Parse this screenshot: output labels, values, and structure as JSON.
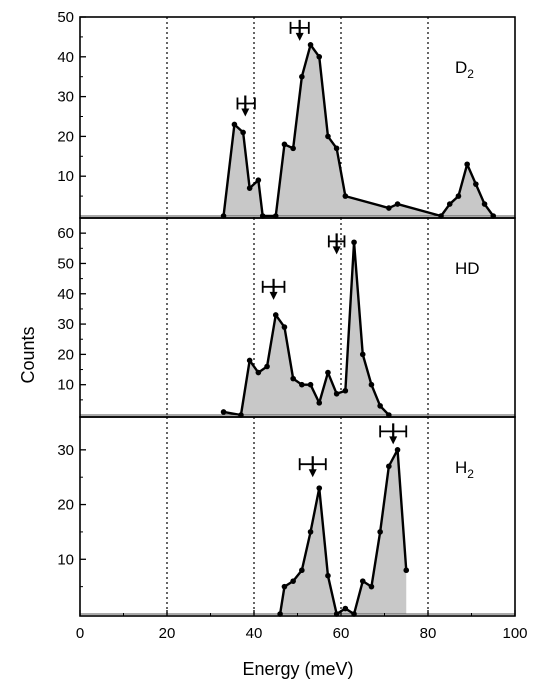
{
  "chart_data": {
    "type": "area",
    "xlabel": "Energy (meV)",
    "ylabel": "Counts",
    "xlim": [
      0,
      100
    ],
    "x_ticks": [
      0,
      20,
      40,
      60,
      80,
      100
    ],
    "x_tick_labels": [
      "0",
      "20",
      "40",
      "60",
      "80",
      "100"
    ],
    "vertical_dotted_lines": [
      20,
      40,
      60,
      80
    ],
    "grid": false,
    "fill_color": "#c8c8c8",
    "line_color": "#000000",
    "panels": [
      {
        "label_main": "D",
        "label_sub": "2",
        "ylim": [
          0,
          50
        ],
        "y_ticks": [
          10,
          20,
          30,
          40,
          50
        ],
        "y_tick_labels": [
          "10",
          "20",
          "30",
          "40",
          "50"
        ],
        "x": [
          33,
          35.5,
          37.5,
          39,
          41,
          42,
          45,
          47,
          49,
          51,
          53,
          55,
          57,
          59,
          61,
          71,
          73,
          83,
          85,
          87,
          89,
          91,
          93,
          95
        ],
        "y": [
          0,
          23,
          21,
          7,
          9,
          0,
          0,
          18,
          17,
          35,
          43,
          40,
          20,
          17,
          5,
          2,
          3,
          0,
          3,
          5,
          13,
          8,
          3,
          0
        ],
        "arrows": [
          {
            "x": 38,
            "y": 25,
            "xerr_minus": 1.8,
            "xerr_plus": 2.2
          },
          {
            "x": 50.5,
            "y": 44,
            "xerr_minus": 2.1,
            "xerr_plus": 2.1
          }
        ]
      },
      {
        "label_main": "HD",
        "label_sub": "",
        "ylim": [
          0,
          65
        ],
        "y_ticks": [
          10,
          20,
          30,
          40,
          50,
          60
        ],
        "y_tick_labels": [
          "10",
          "20",
          "30",
          "40",
          "50",
          "60"
        ],
        "x": [
          33,
          37,
          39,
          41,
          43,
          45,
          47,
          49,
          51,
          53,
          55,
          57,
          59,
          61,
          63,
          65,
          67,
          69,
          71
        ],
        "y": [
          1,
          0,
          18,
          14,
          16,
          33,
          29,
          12,
          10,
          10,
          4,
          14,
          7,
          8,
          57,
          20,
          10,
          3,
          0
        ],
        "arrows": [
          {
            "x": 44.5,
            "y": 38,
            "xerr_minus": 2.5,
            "xerr_plus": 2.5
          },
          {
            "x": 59,
            "y": 53,
            "xerr_minus": 1.8,
            "xerr_plus": 1.8
          }
        ]
      },
      {
        "label_main": "H",
        "label_sub": "2",
        "ylim": [
          0,
          36
        ],
        "y_ticks": [
          10,
          20,
          30
        ],
        "y_tick_labels": [
          "10",
          "20",
          "30"
        ],
        "x": [
          46,
          47,
          49,
          51,
          53,
          55,
          57,
          59,
          61,
          63,
          65,
          67,
          69,
          71,
          73,
          75
        ],
        "y": [
          0,
          5,
          6,
          8,
          15,
          23,
          7,
          0,
          1,
          0,
          6,
          5,
          15,
          27,
          30,
          8
        ],
        "arrows": [
          {
            "x": 53.5,
            "y": 25,
            "xerr_minus": 3.0,
            "xerr_plus": 3.0
          },
          {
            "x": 72,
            "y": 31,
            "xerr_minus": 3.0,
            "xerr_plus": 3.0
          }
        ]
      }
    ]
  }
}
